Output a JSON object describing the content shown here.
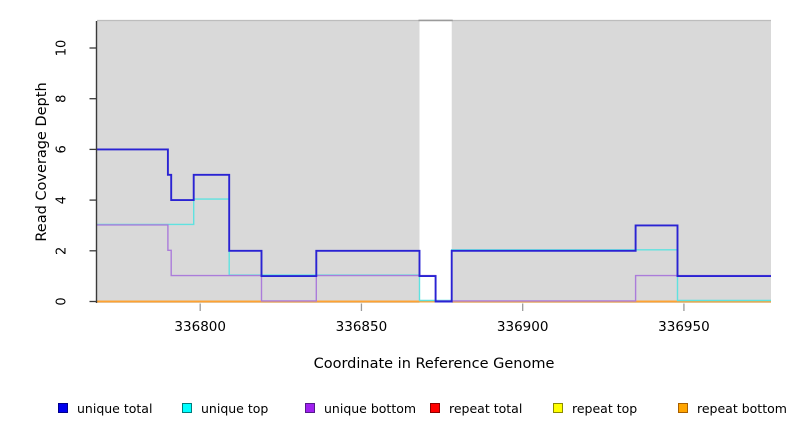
{
  "figure": {
    "background": "#ffffff",
    "plot_background": "#d9d9d9",
    "plot_border_top": "#bdbdbd",
    "gap_cap_color": "#9b9b9b",
    "axis_color": "#3a3a3a",
    "x_tick_color": "#9a9a9a"
  },
  "chart_data": {
    "type": "line",
    "subtype": "step-coverage",
    "title": "",
    "xlabel": "Coordinate in Reference Genome",
    "ylabel": "Read Coverage Depth",
    "xlim": [
      336768,
      336977
    ],
    "ylim": [
      0,
      11
    ],
    "x_ticks": [
      336800,
      336850,
      336900,
      336950
    ],
    "x_tick_labels": [
      "336800",
      "336850",
      "336900",
      "336950"
    ],
    "y_ticks": [
      0,
      2,
      4,
      6,
      8,
      10
    ],
    "y_tick_labels": [
      "0",
      "2",
      "4",
      "6",
      "8",
      "10"
    ],
    "grid": false,
    "background_gap_x": [
      336868,
      336878
    ],
    "legend_position": "bottom",
    "series": [
      {
        "name": "repeat total",
        "color": "#e23a3a",
        "lw": 1.4,
        "steps": [
          [
            336768,
            0
          ],
          [
            336977,
            0
          ]
        ]
      },
      {
        "name": "repeat top",
        "color": "#f2e23c",
        "lw": 1.4,
        "steps": [
          [
            336768,
            0
          ],
          [
            336977,
            0
          ]
        ]
      },
      {
        "name": "repeat bottom",
        "color": "#ffa232",
        "lw": 1.7,
        "steps": [
          [
            336768,
            0
          ],
          [
            336977,
            0
          ]
        ]
      },
      {
        "name": "unique top",
        "color": "#5fe2e0",
        "lw": 1.4,
        "steps": [
          [
            336768,
            3
          ],
          [
            336798,
            4
          ],
          [
            336809,
            1
          ],
          [
            336868,
            0
          ],
          [
            336878,
            2
          ],
          [
            336948,
            0
          ],
          [
            336977,
            0
          ]
        ]
      },
      {
        "name": "unique bottom",
        "color": "#ab7cda",
        "lw": 1.4,
        "steps": [
          [
            336768,
            3
          ],
          [
            336790,
            2
          ],
          [
            336791,
            1
          ],
          [
            336819,
            0
          ],
          [
            336836,
            1
          ],
          [
            336873,
            0
          ],
          [
            336935,
            1
          ],
          [
            336977,
            1
          ]
        ]
      },
      {
        "name": "unique total",
        "color": "#2a23d3",
        "lw": 1.9,
        "steps": [
          [
            336768,
            6
          ],
          [
            336790,
            5
          ],
          [
            336791,
            4
          ],
          [
            336798,
            5
          ],
          [
            336809,
            2
          ],
          [
            336819,
            1
          ],
          [
            336836,
            2
          ],
          [
            336868,
            1
          ],
          [
            336873,
            0
          ],
          [
            336878,
            2
          ],
          [
            336935,
            3
          ],
          [
            336948,
            1
          ],
          [
            336977,
            1
          ]
        ]
      }
    ]
  },
  "legend": {
    "items": [
      {
        "label": "unique total",
        "fill": "#0000ee",
        "border": "#00008b"
      },
      {
        "label": "unique top",
        "fill": "#00ffff",
        "border": "#007d7d"
      },
      {
        "label": "unique bottom",
        "fill": "#a020f0",
        "border": "#551a8b"
      },
      {
        "label": "repeat total",
        "fill": "#ff0000",
        "border": "#8b0000"
      },
      {
        "label": "repeat top",
        "fill": "#ffff00",
        "border": "#8b8b00"
      },
      {
        "label": "repeat bottom",
        "fill": "#ffa500",
        "border": "#a85f00"
      }
    ]
  }
}
